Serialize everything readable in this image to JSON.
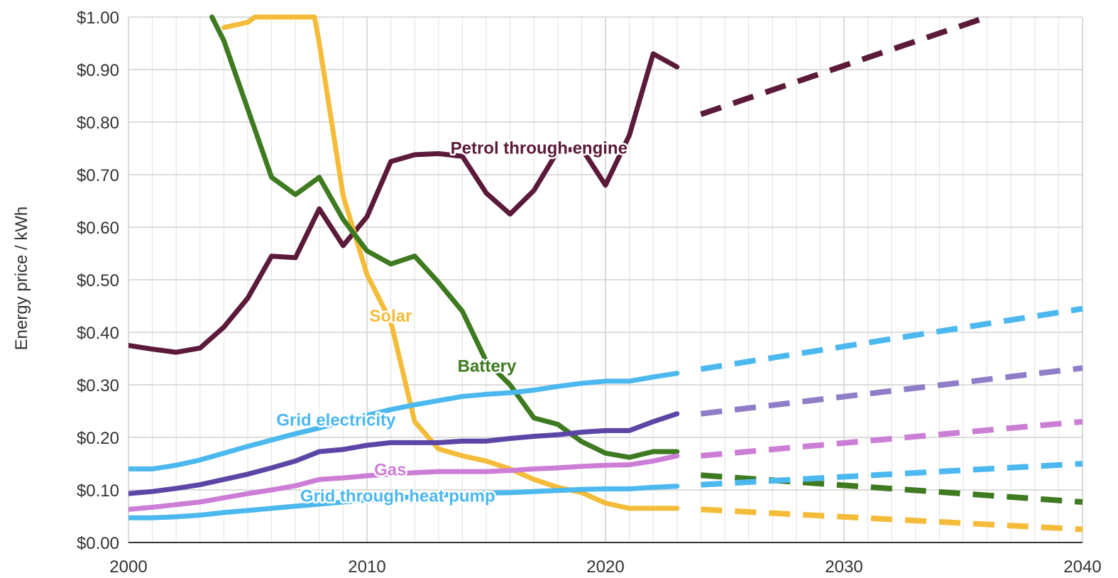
{
  "chart_data": {
    "type": "line",
    "title": "",
    "xlabel": "",
    "ylabel": "Energy price / kWh",
    "xlim": [
      2000,
      2040
    ],
    "ylim": [
      0,
      1.0
    ],
    "x_ticks": [
      "2000",
      "2010",
      "2020",
      "2030",
      "2040"
    ],
    "y_ticks": [
      "$0.00",
      "$0.10",
      "$0.20",
      "$0.30",
      "$0.40",
      "$0.50",
      "$0.60",
      "$0.70",
      "$0.80",
      "$0.90",
      "$1.00"
    ],
    "grid": true,
    "series": [
      {
        "name": "Petrol through engine",
        "color": "#5c1a3a",
        "x": [
          2000,
          2001,
          2002,
          2003,
          2004,
          2005,
          2006,
          2007,
          2008,
          2009,
          2010,
          2011,
          2012,
          2013,
          2014,
          2015,
          2016,
          2017,
          2018,
          2019,
          2020,
          2021,
          2022,
          2023
        ],
        "values": [
          0.375,
          0.368,
          0.362,
          0.37,
          0.41,
          0.465,
          0.545,
          0.542,
          0.635,
          0.565,
          0.62,
          0.725,
          0.738,
          0.74,
          0.735,
          0.665,
          0.625,
          0.67,
          0.745,
          0.75,
          0.68,
          0.775,
          0.93,
          0.905
        ],
        "projection": {
          "x": [
            2024,
            2036
          ],
          "values": [
            0.815,
            1.0
          ]
        }
      },
      {
        "name": "Solar",
        "color": "#f5bc3a",
        "x": [
          2004,
          2005,
          2005.3,
          2007.8,
          2008,
          2009,
          2010,
          2011,
          2012,
          2013,
          2014,
          2015,
          2016,
          2017,
          2018,
          2019,
          2020,
          2021,
          2022,
          2023
        ],
        "values": [
          0.98,
          0.99,
          1.0,
          1.0,
          0.95,
          0.66,
          0.51,
          0.42,
          0.23,
          0.178,
          0.165,
          0.155,
          0.14,
          0.12,
          0.105,
          0.095,
          0.075,
          0.065,
          0.065,
          0.065
        ],
        "projection": {
          "x": [
            2024,
            2040
          ],
          "values": [
            0.063,
            0.025
          ]
        }
      },
      {
        "name": "Battery",
        "color": "#3e7a20",
        "x": [
          2003.5,
          2004,
          2005,
          2006,
          2007,
          2008,
          2009,
          2010,
          2011,
          2012,
          2013,
          2014,
          2015,
          2016,
          2017,
          2018,
          2019,
          2020,
          2021,
          2022,
          2023
        ],
        "values": [
          1.0,
          0.955,
          0.825,
          0.695,
          0.662,
          0.695,
          0.615,
          0.555,
          0.53,
          0.545,
          0.495,
          0.44,
          0.345,
          0.3,
          0.237,
          0.225,
          0.192,
          0.17,
          0.162,
          0.173,
          0.173
        ],
        "projection": {
          "x": [
            2024,
            2040
          ],
          "values": [
            0.128,
            0.077
          ]
        }
      },
      {
        "name": "Grid electricity",
        "color": "#4bb8ef",
        "x": [
          2000,
          2001,
          2002,
          2003,
          2004,
          2005,
          2006,
          2007,
          2008,
          2009,
          2010,
          2011,
          2012,
          2013,
          2014,
          2015,
          2016,
          2017,
          2018,
          2019,
          2020,
          2021,
          2022,
          2023
        ],
        "values": [
          0.14,
          0.14,
          0.147,
          0.157,
          0.17,
          0.183,
          0.195,
          0.207,
          0.218,
          0.23,
          0.242,
          0.253,
          0.262,
          0.27,
          0.278,
          0.282,
          0.285,
          0.29,
          0.297,
          0.303,
          0.307,
          0.307,
          0.315,
          0.322
        ],
        "projection": {
          "x": [
            2024,
            2040
          ],
          "values": [
            0.33,
            0.445
          ]
        }
      },
      {
        "name": "",
        "color": "#5b46a6",
        "projection_color": "#8f7dc8",
        "x": [
          2000,
          2001,
          2002,
          2003,
          2004,
          2005,
          2006,
          2007,
          2008,
          2009,
          2010,
          2011,
          2012,
          2013,
          2014,
          2015,
          2016,
          2017,
          2018,
          2019,
          2020,
          2021,
          2022,
          2023
        ],
        "values": [
          0.093,
          0.097,
          0.103,
          0.11,
          0.12,
          0.13,
          0.142,
          0.155,
          0.173,
          0.177,
          0.185,
          0.19,
          0.19,
          0.19,
          0.193,
          0.193,
          0.198,
          0.202,
          0.205,
          0.21,
          0.213,
          0.213,
          0.23,
          0.245
        ],
        "projection": {
          "x": [
            2024,
            2040
          ],
          "values": [
            0.245,
            0.332
          ]
        }
      },
      {
        "name": "Gas",
        "color": "#cc7ed6",
        "x": [
          2000,
          2001,
          2002,
          2003,
          2004,
          2005,
          2006,
          2007,
          2008,
          2009,
          2010,
          2011,
          2012,
          2013,
          2014,
          2015,
          2016,
          2017,
          2018,
          2019,
          2020,
          2021,
          2022,
          2023
        ],
        "values": [
          0.063,
          0.067,
          0.072,
          0.077,
          0.085,
          0.093,
          0.1,
          0.108,
          0.12,
          0.123,
          0.127,
          0.13,
          0.133,
          0.135,
          0.135,
          0.135,
          0.137,
          0.14,
          0.142,
          0.145,
          0.147,
          0.148,
          0.155,
          0.165
        ],
        "projection": {
          "x": [
            2024,
            2040
          ],
          "values": [
            0.165,
            0.23
          ]
        }
      },
      {
        "name": "Grid through heat pump",
        "color": "#4bb8ef",
        "x": [
          2000,
          2001,
          2002,
          2003,
          2004,
          2005,
          2006,
          2007,
          2008,
          2009,
          2010,
          2011,
          2012,
          2013,
          2014,
          2015,
          2016,
          2017,
          2018,
          2019,
          2020,
          2021,
          2022,
          2023
        ],
        "values": [
          0.047,
          0.047,
          0.049,
          0.052,
          0.057,
          0.061,
          0.065,
          0.069,
          0.073,
          0.077,
          0.081,
          0.084,
          0.087,
          0.09,
          0.093,
          0.094,
          0.095,
          0.097,
          0.099,
          0.101,
          0.102,
          0.102,
          0.105,
          0.107
        ],
        "projection": {
          "x": [
            2024,
            2040
          ],
          "values": [
            0.11,
            0.15
          ]
        }
      }
    ],
    "labels": [
      {
        "text": "Petrol through engine",
        "x": 2013.5,
        "y": 0.74,
        "color": "#5c1a3a"
      },
      {
        "text": "Solar",
        "x": 2010.1,
        "y": 0.42,
        "color": "#f5bc3a"
      },
      {
        "text": "Battery",
        "x": 2013.8,
        "y": 0.325,
        "color": "#3e7a20"
      },
      {
        "text": "Grid electricity",
        "x": 2006.2,
        "y": 0.222,
        "color": "#4bb8ef"
      },
      {
        "text": "Gas",
        "x": 2010.3,
        "y": 0.128,
        "color": "#cc7ed6"
      },
      {
        "text": "Grid through heat pump",
        "x": 2007.2,
        "y": 0.078,
        "color": "#4bb8ef"
      }
    ]
  }
}
